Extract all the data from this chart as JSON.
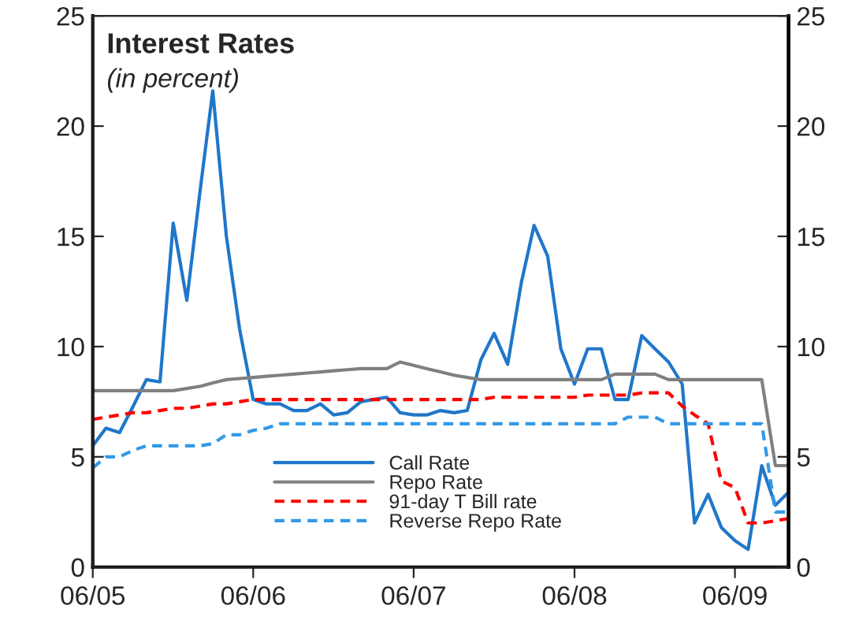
{
  "chart_data": {
    "type": "line",
    "title": "Interest Rates",
    "subtitle": "(in percent)",
    "x": [
      "2005-06",
      "2005-07",
      "2005-08",
      "2005-09",
      "2005-10",
      "2005-11",
      "2005-12",
      "2006-01",
      "2006-02",
      "2006-03",
      "2006-04",
      "2006-05",
      "2006-06",
      "2006-07",
      "2006-08",
      "2006-09",
      "2006-10",
      "2006-11",
      "2006-12",
      "2007-01",
      "2007-02",
      "2007-03",
      "2007-04",
      "2007-05",
      "2007-06",
      "2007-07",
      "2007-08",
      "2007-09",
      "2007-10",
      "2007-11",
      "2007-12",
      "2008-01",
      "2008-02",
      "2008-03",
      "2008-04",
      "2008-05",
      "2008-06",
      "2008-07",
      "2008-08",
      "2008-09",
      "2008-10",
      "2008-11",
      "2008-12",
      "2009-01",
      "2009-02",
      "2009-03",
      "2009-04",
      "2009-05",
      "2009-06",
      "2009-07",
      "2009-08",
      "2009-09",
      "2009-10"
    ],
    "series": [
      {
        "name": "Call Rate",
        "color": "#1f77c9",
        "line_style": "solid",
        "values": [
          5.5,
          6.3,
          6.1,
          7.3,
          8.5,
          8.4,
          15.6,
          12.1,
          17.2,
          21.6,
          15.0,
          10.8,
          7.6,
          7.4,
          7.4,
          7.1,
          7.1,
          7.4,
          6.9,
          7.0,
          7.5,
          7.6,
          7.7,
          7.0,
          6.9,
          6.9,
          7.1,
          7.0,
          7.1,
          9.4,
          10.6,
          9.2,
          12.9,
          15.5,
          14.1,
          9.9,
          8.3,
          9.9,
          9.9,
          7.6,
          7.6,
          10.5,
          9.9,
          9.3,
          8.3,
          2.0,
          3.3,
          1.8,
          1.2,
          0.8,
          4.6,
          2.8,
          3.4
        ]
      },
      {
        "name": "Repo Rate",
        "color": "#808080",
        "line_style": "solid",
        "values": [
          8.0,
          8.0,
          8.0,
          8.0,
          8.0,
          8.0,
          8.0,
          8.1,
          8.2,
          8.35,
          8.5,
          8.55,
          8.6,
          8.65,
          8.7,
          8.75,
          8.8,
          8.85,
          8.9,
          8.95,
          9.0,
          9.0,
          9.0,
          9.3,
          9.15,
          9.0,
          8.85,
          8.7,
          8.6,
          8.5,
          8.5,
          8.5,
          8.5,
          8.5,
          8.5,
          8.5,
          8.5,
          8.5,
          8.5,
          8.75,
          8.75,
          8.75,
          8.75,
          8.5,
          8.5,
          8.5,
          8.5,
          8.5,
          8.5,
          8.5,
          8.5,
          4.6,
          4.6
        ]
      },
      {
        "name": "91-day T Bill rate",
        "color": "#ff0000",
        "line_style": "dashed",
        "values": [
          6.7,
          6.8,
          6.9,
          7.0,
          7.0,
          7.1,
          7.2,
          7.2,
          7.3,
          7.4,
          7.4,
          7.5,
          7.6,
          7.6,
          7.6,
          7.6,
          7.6,
          7.6,
          7.6,
          7.6,
          7.6,
          7.6,
          7.6,
          7.6,
          7.6,
          7.6,
          7.6,
          7.6,
          7.6,
          7.6,
          7.7,
          7.7,
          7.7,
          7.7,
          7.7,
          7.7,
          7.7,
          7.8,
          7.8,
          7.8,
          7.8,
          7.9,
          7.9,
          7.9,
          7.3,
          6.9,
          6.5,
          3.9,
          3.6,
          2.0,
          2.0,
          2.1,
          2.2
        ]
      },
      {
        "name": "Reverse Repo Rate",
        "color": "#3399e6",
        "line_style": "dashed",
        "values": [
          4.5,
          5.0,
          5.0,
          5.3,
          5.5,
          5.5,
          5.5,
          5.5,
          5.5,
          5.6,
          6.0,
          6.0,
          6.2,
          6.3,
          6.5,
          6.5,
          6.5,
          6.5,
          6.5,
          6.5,
          6.5,
          6.5,
          6.5,
          6.5,
          6.5,
          6.5,
          6.5,
          6.5,
          6.5,
          6.5,
          6.5,
          6.5,
          6.5,
          6.5,
          6.5,
          6.5,
          6.5,
          6.5,
          6.5,
          6.5,
          6.8,
          6.8,
          6.8,
          6.5,
          6.5,
          6.5,
          6.5,
          6.5,
          6.5,
          6.5,
          6.5,
          2.5,
          2.5
        ]
      }
    ],
    "xlim": [
      "2005-06",
      "2009-10"
    ],
    "xticks": [
      {
        "value": "2005-06",
        "label": "06/05"
      },
      {
        "value": "2006-06",
        "label": "06/06"
      },
      {
        "value": "2007-06",
        "label": "06/07"
      },
      {
        "value": "2008-06",
        "label": "06/08"
      },
      {
        "value": "2009-06",
        "label": "06/09"
      }
    ],
    "ylim": [
      0,
      25
    ],
    "yticks": [
      0,
      5,
      10,
      15,
      20,
      25
    ],
    "y2lim": [
      0,
      25
    ],
    "y2ticks": [
      0,
      5,
      10,
      15,
      20,
      25
    ],
    "legend": "bottom",
    "grid": false
  }
}
